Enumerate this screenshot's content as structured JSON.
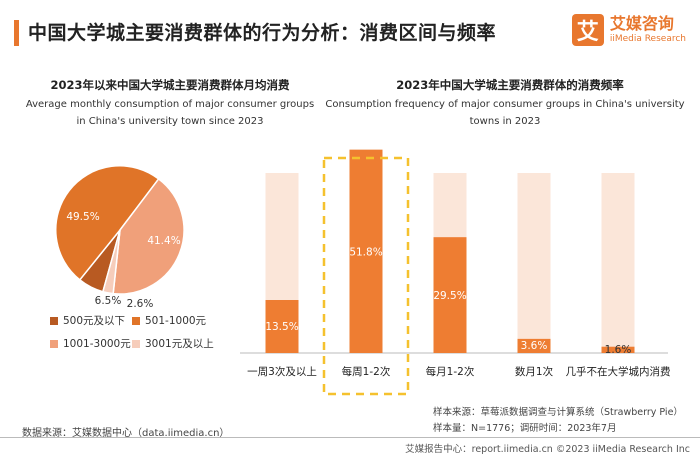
{
  "header": {
    "title": "中国大学城主要消费群体的行为分析：消费区间与频率",
    "logo_mark": "艾",
    "logo_cn": "艾媒咨询",
    "logo_en": "iiMedia Research"
  },
  "left_chart": {
    "title": "2023年以来中国大学城主要消费群体月均消费",
    "title_en_line1": "Average monthly consumption of major consumer groups",
    "title_en_line2": "in China's university town since 2023"
  },
  "right_chart": {
    "title": "2023年中国大学城主要消费群体的消费频率",
    "title_en_line1": "Consumption frequency of major consumer groups in China's university",
    "title_en_line2": "towns in 2023"
  },
  "chart_data": [
    {
      "type": "pie",
      "title": "2023年以来中国大学城主要消费群体月均消费",
      "slices": [
        {
          "label": "500元及以下",
          "value": 6.5,
          "display": "6.5%"
        },
        {
          "label": "501-1000元",
          "value": 49.5,
          "display": "49.5%"
        },
        {
          "label": "1001-3000元",
          "value": 41.4,
          "display": "41.4%"
        },
        {
          "label": "3001元及以上",
          "value": 2.6,
          "display": "2.6%"
        }
      ],
      "colors": [
        "#b85a22",
        "#e07428",
        "#f0a07a",
        "#f6cdbb"
      ]
    },
    {
      "type": "bar",
      "title": "2023年中国大学城主要消费群体的消费频率",
      "categories": [
        "一周3次及以上",
        "每周1-2次",
        "每月1-2次",
        "数月1次",
        "几乎不在大学城内消费"
      ],
      "values": [
        13.5,
        51.8,
        29.5,
        3.6,
        1.6
      ],
      "labels": [
        "13.5%",
        "51.8%",
        "29.5%",
        "3.6%",
        "1.6%"
      ],
      "ylim": [
        0,
        60
      ],
      "highlight_index": 1,
      "bar_color": "#ee7d32",
      "background_color": "#fbe6d9",
      "highlight_color": "#f5c12e"
    }
  ],
  "notes": {
    "line1": "样本来源：草莓派数据调查与计算系统（Strawberry Pie）",
    "line2": "样本量：N=1776；调研时间：2023年7月"
  },
  "source": "数据来源：艾媒数据中心（data.iimedia.cn）",
  "footer": "艾媒报告中心：report.iimedia.cn   ©2023  iiMedia Research  Inc"
}
